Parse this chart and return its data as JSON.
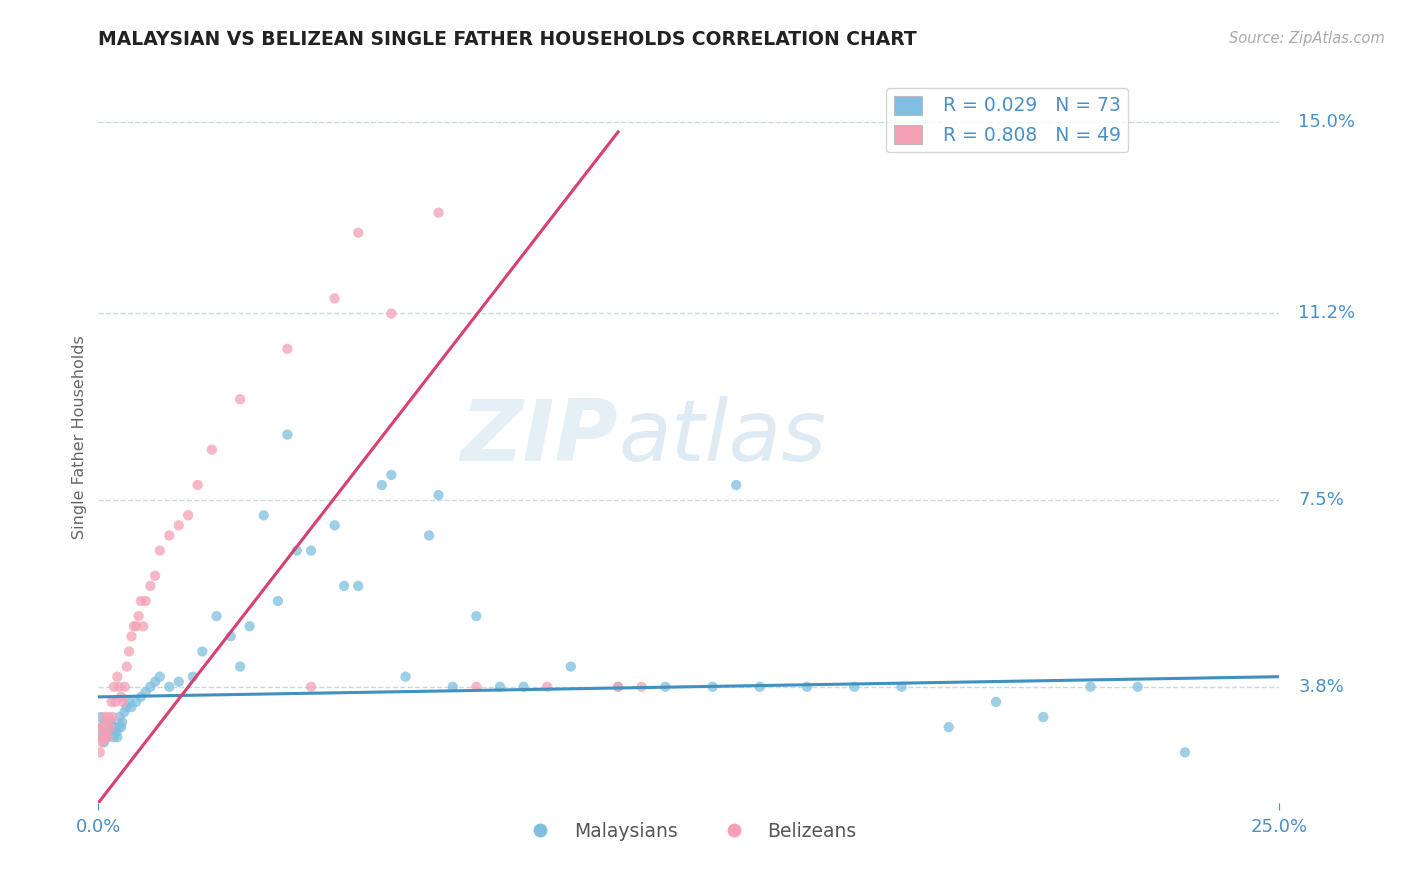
{
  "title": "MALAYSIAN VS BELIZEAN SINGLE FATHER HOUSEHOLDS CORRELATION CHART",
  "source": "Source: ZipAtlas.com",
  "ylabel": "Single Father Households",
  "watermark_zip": "ZIP",
  "watermark_atlas": "atlas",
  "xlim": [
    0.0,
    25.0
  ],
  "ylim": [
    1.5,
    16.0
  ],
  "yticks": [
    3.8,
    7.5,
    11.2,
    15.0
  ],
  "ytick_labels": [
    "3.8%",
    "7.5%",
    "11.2%",
    "15.0%"
  ],
  "malaysian_R": 0.029,
  "malaysian_N": 73,
  "belizean_R": 0.808,
  "belizean_N": 49,
  "malaysian_color": "#7fbfdf",
  "belizean_color": "#f4a0b5",
  "malaysian_line_color": "#4090c0",
  "belizean_line_color": "#d84070",
  "axis_color": "#4a90c8",
  "grid_color": "#c8d8ea",
  "background_color": "#ffffff",
  "malaysian_x": [
    0.05,
    0.07,
    0.08,
    0.1,
    0.12,
    0.13,
    0.15,
    0.16,
    0.17,
    0.18,
    0.2,
    0.22,
    0.25,
    0.27,
    0.3,
    0.32,
    0.35,
    0.38,
    0.4,
    0.43,
    0.45,
    0.48,
    0.5,
    0.55,
    0.6,
    0.65,
    0.7,
    0.8,
    0.9,
    1.0,
    1.1,
    1.2,
    1.3,
    1.5,
    1.7,
    2.0,
    2.2,
    2.5,
    2.8,
    3.0,
    3.2,
    3.5,
    4.0,
    4.5,
    5.0,
    5.5,
    6.0,
    6.5,
    7.0,
    7.5,
    8.0,
    9.0,
    10.0,
    11.0,
    12.0,
    13.0,
    14.0,
    15.0,
    16.0,
    17.0,
    18.0,
    19.0,
    20.0,
    21.0,
    22.0,
    23.0,
    3.8,
    4.2,
    5.2,
    6.2,
    7.2,
    8.5,
    13.5
  ],
  "malaysian_y": [
    3.2,
    2.8,
    3.0,
    2.9,
    2.7,
    3.1,
    3.0,
    2.8,
    2.9,
    3.0,
    2.8,
    3.0,
    2.9,
    3.1,
    3.0,
    2.8,
    3.0,
    2.9,
    2.8,
    3.0,
    3.2,
    3.0,
    3.1,
    3.3,
    3.4,
    3.5,
    3.4,
    3.5,
    3.6,
    3.7,
    3.8,
    3.9,
    4.0,
    3.8,
    3.9,
    4.0,
    4.5,
    5.2,
    4.8,
    4.2,
    5.0,
    7.2,
    8.8,
    6.5,
    7.0,
    5.8,
    7.8,
    4.0,
    6.8,
    3.8,
    5.2,
    3.8,
    4.2,
    3.8,
    3.8,
    3.8,
    3.8,
    3.8,
    3.8,
    3.8,
    3.0,
    3.5,
    3.2,
    3.8,
    3.8,
    2.5,
    5.5,
    6.5,
    5.8,
    8.0,
    7.6,
    3.8,
    7.8
  ],
  "belizean_x": [
    0.03,
    0.05,
    0.06,
    0.08,
    0.1,
    0.12,
    0.14,
    0.16,
    0.18,
    0.2,
    0.22,
    0.25,
    0.28,
    0.3,
    0.33,
    0.36,
    0.4,
    0.44,
    0.48,
    0.52,
    0.56,
    0.6,
    0.65,
    0.7,
    0.75,
    0.8,
    0.85,
    0.9,
    0.95,
    1.0,
    1.1,
    1.2,
    1.3,
    1.5,
    1.7,
    1.9,
    2.1,
    2.4,
    3.0,
    4.0,
    5.0,
    5.5,
    6.2,
    7.2,
    8.0,
    9.5,
    11.0,
    11.5,
    4.5
  ],
  "belizean_y": [
    2.5,
    2.8,
    3.0,
    2.7,
    3.0,
    2.8,
    3.2,
    2.9,
    3.1,
    2.8,
    3.2,
    3.0,
    3.5,
    3.2,
    3.8,
    3.5,
    4.0,
    3.8,
    3.6,
    3.5,
    3.8,
    4.2,
    4.5,
    4.8,
    5.0,
    5.0,
    5.2,
    5.5,
    5.0,
    5.5,
    5.8,
    6.0,
    6.5,
    6.8,
    7.0,
    7.2,
    7.8,
    8.5,
    9.5,
    10.5,
    11.5,
    12.8,
    11.2,
    13.2,
    3.8,
    3.8,
    3.8,
    3.8,
    3.8
  ],
  "belizean_line_x0": 0.0,
  "belizean_line_y0": 1.5,
  "belizean_line_x1": 11.0,
  "belizean_line_y1": 14.8,
  "malaysian_line_y0": 3.6,
  "malaysian_line_y1": 4.0
}
